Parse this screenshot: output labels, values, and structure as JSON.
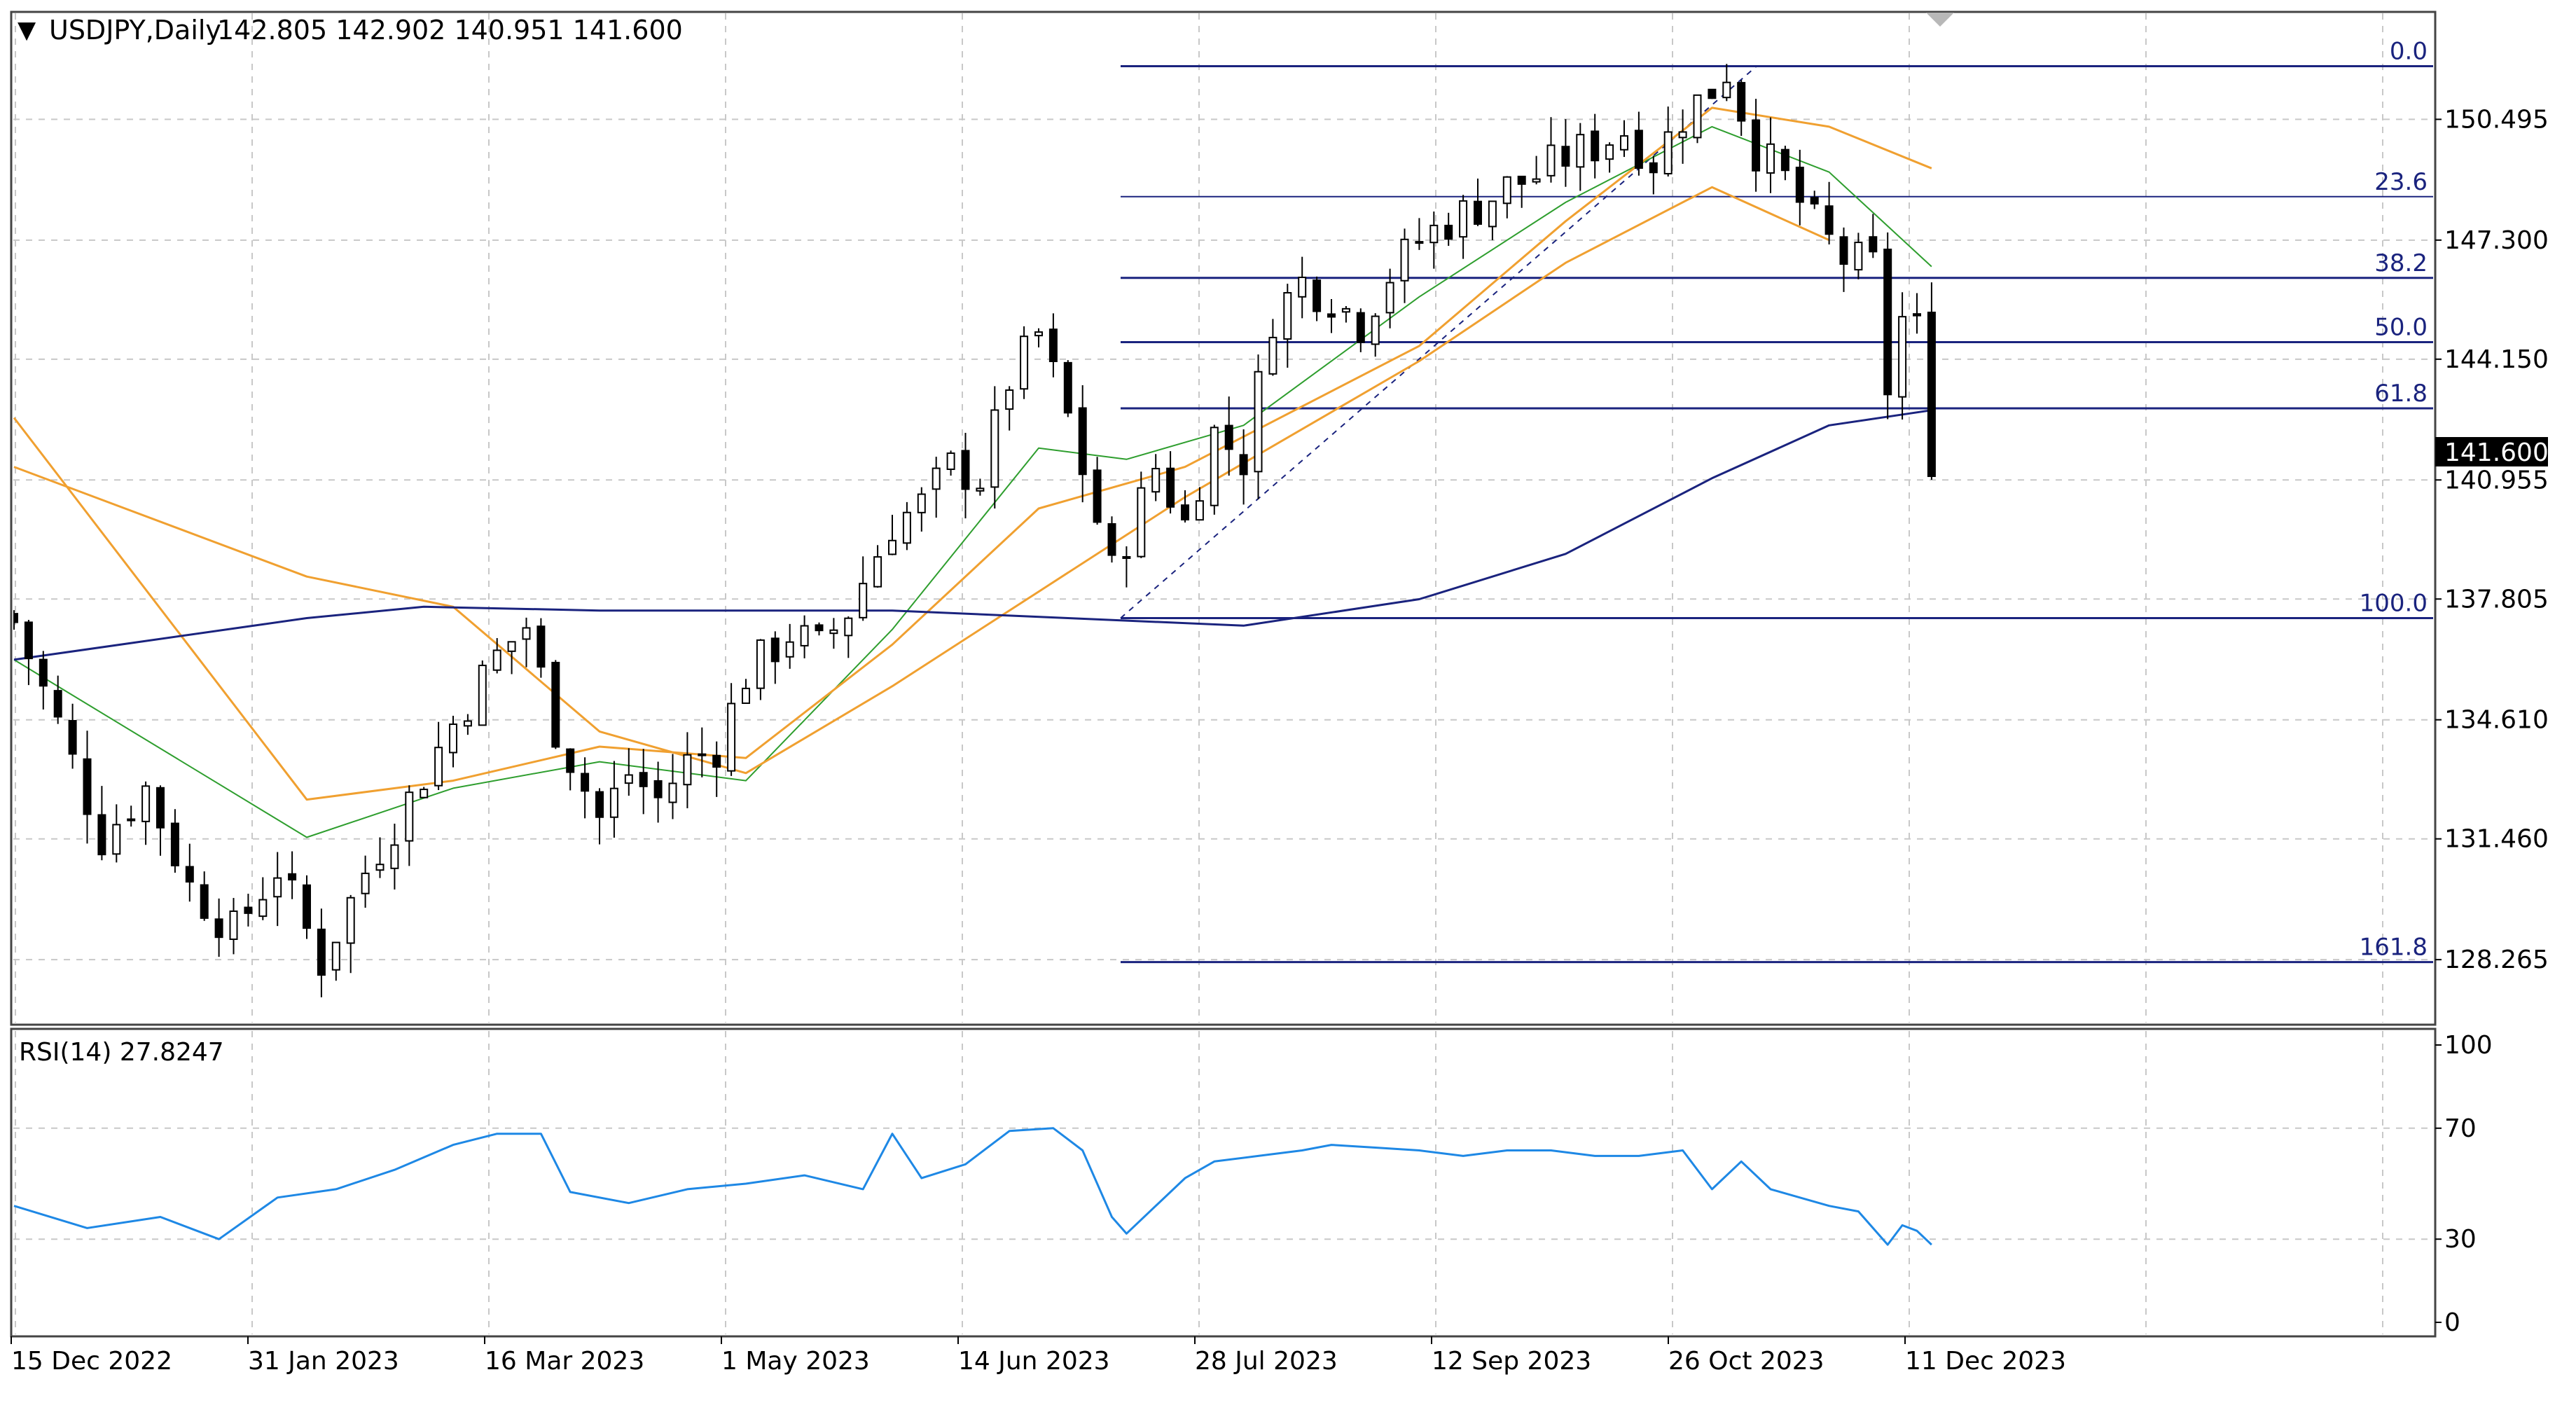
{
  "header": {
    "menu_glyph": "▼",
    "symbol": "USDJPY,Daily",
    "ohlc": "142.805 142.902 140.951 141.600"
  },
  "price_axis": {
    "ticks": [
      "150.495",
      "147.300",
      "144.150",
      "141.600",
      "140.955",
      "137.805",
      "134.610",
      "131.460",
      "128.265"
    ],
    "current_price_label": "141.600"
  },
  "fib_levels": [
    {
      "label": "0.0",
      "price": 151.9
    },
    {
      "label": "23.6",
      "price": 148.45
    },
    {
      "label": "38.2",
      "price": 146.3
    },
    {
      "label": "50.0",
      "price": 144.6
    },
    {
      "label": "61.8",
      "price": 142.85
    },
    {
      "label": "100.0",
      "price": 137.3
    },
    {
      "label": "161.8",
      "price": 128.2
    }
  ],
  "rsi": {
    "label": "RSI(14) 27.8247",
    "ticks": [
      "100",
      "70",
      "30",
      "0"
    ],
    "levels": [
      70,
      30
    ]
  },
  "x_axis": {
    "labels": [
      "15 Dec 2022",
      "31 Jan 2023",
      "16 Mar 2023",
      "1 May 2023",
      "14 Jun 2023",
      "28 Jul 2023",
      "12 Sep 2023",
      "26 Oct 2023",
      "11 Dec 2023"
    ]
  },
  "colors": {
    "candles": "#000000",
    "ma_fast": "#2e9e2e",
    "ma_mid": "#f0a030",
    "ma_slow": "#1a237e",
    "fib": "#1a237e",
    "rsi_line": "#1e88e5",
    "grid": "#c8c8c8",
    "price_tag_bg": "#000000",
    "price_tag_text": "#ffffff"
  },
  "chart_data": [
    {
      "type": "line",
      "title": "USDJPY,Daily",
      "x_labels": [
        "15 Dec 2022",
        "31 Jan 2023",
        "16 Mar 2023",
        "1 May 2023",
        "14 Jun 2023",
        "28 Jul 2023",
        "12 Sep 2023",
        "26 Oct 2023",
        "11 Dec 2023"
      ],
      "ylim": [
        126.6,
        153.3
      ],
      "price_close_path": [
        [
          0,
          137.2
        ],
        [
          3,
          134.5
        ],
        [
          6,
          131.5
        ],
        [
          9,
          132.8
        ],
        [
          12,
          130.2
        ],
        [
          15,
          129.0
        ],
        [
          18,
          130.7
        ],
        [
          21,
          128.2
        ],
        [
          24,
          130.6
        ],
        [
          27,
          132.5
        ],
        [
          30,
          134.5
        ],
        [
          33,
          136.3
        ],
        [
          35,
          137.1
        ],
        [
          37,
          134.4
        ],
        [
          40,
          132.0
        ],
        [
          42,
          133.2
        ],
        [
          44,
          132.5
        ],
        [
          46,
          133.5
        ],
        [
          48,
          133.9
        ],
        [
          50,
          135.8
        ],
        [
          53,
          136.9
        ],
        [
          55,
          136.5
        ],
        [
          57,
          137.5
        ],
        [
          60,
          139.8
        ],
        [
          62,
          140.3
        ],
        [
          64,
          141.3
        ],
        [
          66,
          141.0
        ],
        [
          68,
          143.6
        ],
        [
          70,
          144.8
        ],
        [
          72,
          142.6
        ],
        [
          74,
          139.9
        ],
        [
          75,
          138.5
        ],
        [
          78,
          141.3
        ],
        [
          80,
          139.8
        ],
        [
          82,
          142.2
        ],
        [
          84,
          141.5
        ],
        [
          86,
          145.3
        ],
        [
          88,
          146.2
        ],
        [
          90,
          145.8
        ],
        [
          92,
          145.1
        ],
        [
          94,
          146.4
        ],
        [
          96,
          147.3
        ],
        [
          98,
          147.8
        ],
        [
          100,
          148.2
        ],
        [
          102,
          148.7
        ],
        [
          104,
          149.0
        ],
        [
          106,
          149.5
        ],
        [
          108,
          149.8
        ],
        [
          110,
          150.2
        ],
        [
          112,
          149.4
        ],
        [
          114,
          150.6
        ],
        [
          116,
          151.3
        ],
        [
          117,
          151.8
        ],
        [
          119,
          149.7
        ],
        [
          121,
          148.9
        ],
        [
          123,
          147.7
        ],
        [
          125,
          146.8
        ],
        [
          127,
          146.6
        ],
        [
          128,
          143.4
        ],
        [
          129,
          145.2
        ],
        [
          130,
          144.9
        ],
        [
          131,
          141.6
        ]
      ],
      "series": [
        {
          "values": [
            [
              0,
              136.2
            ],
            [
              20,
              131.5
            ],
            [
              30,
              132.8
            ],
            [
              40,
              133.5
            ],
            [
              50,
              133.0
            ],
            [
              60,
              137.0
            ],
            [
              70,
              141.8
            ],
            [
              76,
              141.5
            ],
            [
              84,
              142.4
            ],
            [
              96,
              145.8
            ],
            [
              106,
              148.3
            ],
            [
              116,
              150.3
            ],
            [
              124,
              149.1
            ],
            [
              131,
              146.6
            ]
          ]
        },
        {
          "values": [
            [
              0,
              142.6
            ],
            [
              20,
              132.5
            ],
            [
              30,
              133.0
            ],
            [
              40,
              133.9
            ],
            [
              50,
              133.6
            ],
            [
              60,
              136.6
            ],
            [
              70,
              140.2
            ],
            [
              80,
              141.3
            ],
            [
              96,
              144.5
            ],
            [
              106,
              147.8
            ],
            [
              116,
              150.8
            ],
            [
              124,
              150.3
            ],
            [
              131,
              149.2
            ]
          ]
        },
        {
          "values": [
            [
              0,
              141.3
            ],
            [
              20,
              138.4
            ],
            [
              30,
              137.6
            ],
            [
              40,
              134.3
            ],
            [
              50,
              133.2
            ],
            [
              60,
              135.5
            ],
            [
              70,
              138.0
            ],
            [
              80,
              140.5
            ],
            [
              96,
              144.1
            ],
            [
              106,
              146.7
            ],
            [
              116,
              148.7
            ],
            [
              124,
              147.3
            ]
          ]
        },
        {
          "values": [
            [
              0,
              136.2
            ],
            [
              20,
              137.3
            ],
            [
              28,
              137.6
            ],
            [
              40,
              137.5
            ],
            [
              60,
              137.5
            ],
            [
              72,
              137.3
            ],
            [
              84,
              137.1
            ],
            [
              96,
              137.8
            ],
            [
              106,
              139.0
            ],
            [
              116,
              141.0
            ],
            [
              124,
              142.4
            ],
            [
              131,
              142.8
            ]
          ]
        }
      ]
    },
    {
      "type": "line",
      "title": "RSI(14) 27.8247",
      "ylim": [
        0,
        100
      ],
      "series": [
        {
          "values": [
            [
              0,
              42
            ],
            [
              5,
              34
            ],
            [
              10,
              38
            ],
            [
              14,
              30
            ],
            [
              18,
              45
            ],
            [
              22,
              48
            ],
            [
              26,
              55
            ],
            [
              30,
              64
            ],
            [
              33,
              68
            ],
            [
              36,
              68
            ],
            [
              38,
              47
            ],
            [
              42,
              43
            ],
            [
              46,
              48
            ],
            [
              50,
              50
            ],
            [
              54,
              53
            ],
            [
              58,
              48
            ],
            [
              60,
              68
            ],
            [
              62,
              52
            ],
            [
              65,
              57
            ],
            [
              68,
              69
            ],
            [
              71,
              70
            ],
            [
              73,
              62
            ],
            [
              75,
              38
            ],
            [
              76,
              32
            ],
            [
              80,
              52
            ],
            [
              82,
              58
            ],
            [
              85,
              60
            ],
            [
              88,
              62
            ],
            [
              90,
              64
            ],
            [
              93,
              63
            ],
            [
              96,
              62
            ],
            [
              99,
              60
            ],
            [
              102,
              62
            ],
            [
              105,
              62
            ],
            [
              108,
              60
            ],
            [
              111,
              60
            ],
            [
              114,
              62
            ],
            [
              116,
              48
            ],
            [
              118,
              58
            ],
            [
              120,
              48
            ],
            [
              122,
              45
            ],
            [
              124,
              42
            ],
            [
              126,
              40
            ],
            [
              128,
              28
            ],
            [
              129,
              35
            ],
            [
              130,
              33
            ],
            [
              131,
              28
            ]
          ]
        }
      ]
    }
  ]
}
